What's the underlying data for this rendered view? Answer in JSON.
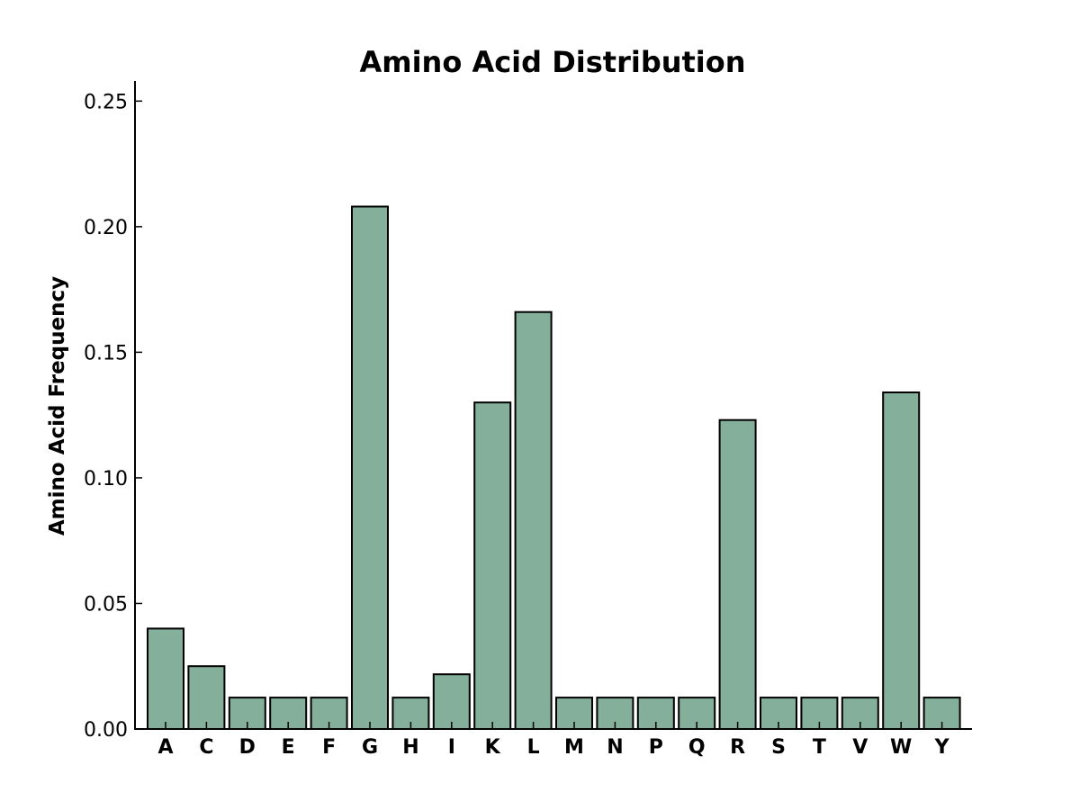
{
  "chart_data": {
    "type": "bar",
    "title": "Amino Acid Distribution",
    "xlabel": "",
    "ylabel": "Amino Acid Frequency",
    "categories": [
      "A",
      "C",
      "D",
      "E",
      "F",
      "G",
      "H",
      "I",
      "K",
      "L",
      "M",
      "N",
      "P",
      "Q",
      "R",
      "S",
      "T",
      "V",
      "W",
      "Y"
    ],
    "values": [
      0.04,
      0.025,
      0.0125,
      0.0125,
      0.0125,
      0.208,
      0.0125,
      0.0218,
      0.13,
      0.166,
      0.0125,
      0.0125,
      0.0125,
      0.0125,
      0.123,
      0.0125,
      0.0125,
      0.0125,
      0.134,
      0.0125
    ],
    "ylim": [
      0,
      0.258
    ],
    "yticks": [
      "0.00",
      "0.05",
      "0.10",
      "0.15",
      "0.20",
      "0.25"
    ],
    "ytick_values": [
      0,
      0.05,
      0.1,
      0.15,
      0.2,
      0.25
    ],
    "bar_color": "#83af9b",
    "edge_color": "#000000",
    "grid": false,
    "legend": "none"
  }
}
